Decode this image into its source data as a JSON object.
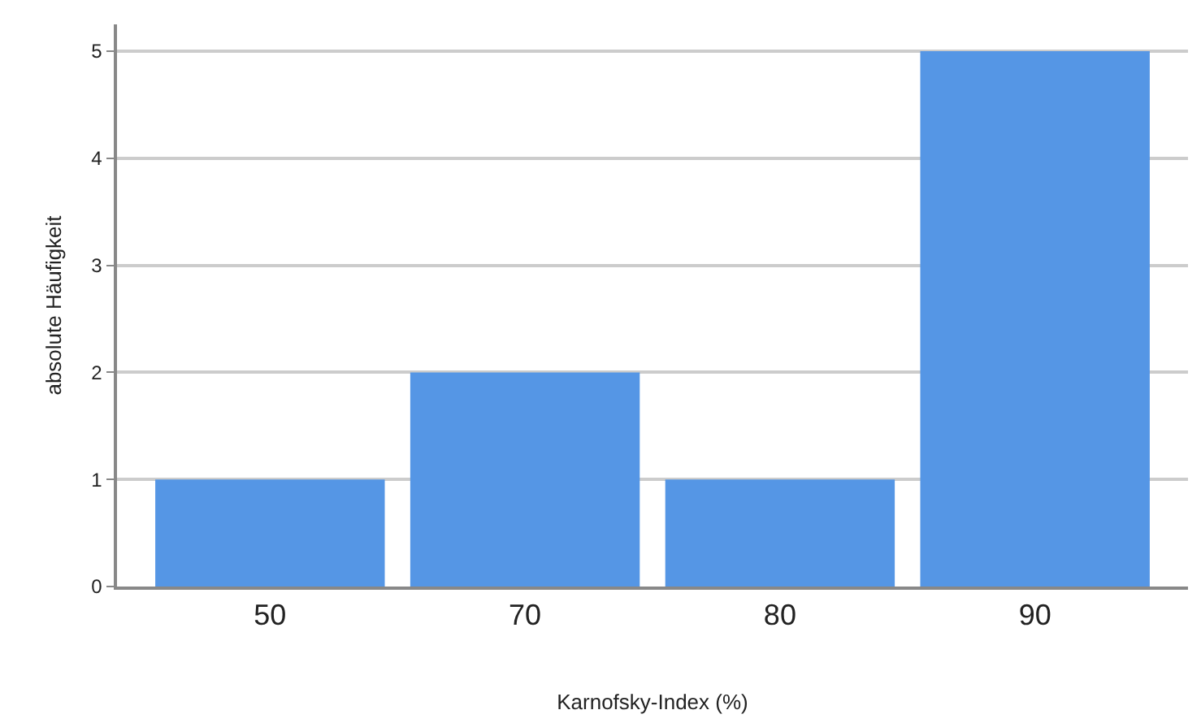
{
  "chart_data": {
    "type": "bar",
    "xlabel": "Karnofsky-Index (%)",
    "ylabel": "absolute Häufigkeit",
    "categories": [
      "50",
      "70",
      "80",
      "90"
    ],
    "values": [
      1,
      2,
      1,
      5
    ],
    "color": "#5596e5",
    "ylim": [
      0,
      5.25
    ],
    "yticks": [
      0,
      1,
      2,
      3,
      4,
      5
    ],
    "grid": "y"
  }
}
